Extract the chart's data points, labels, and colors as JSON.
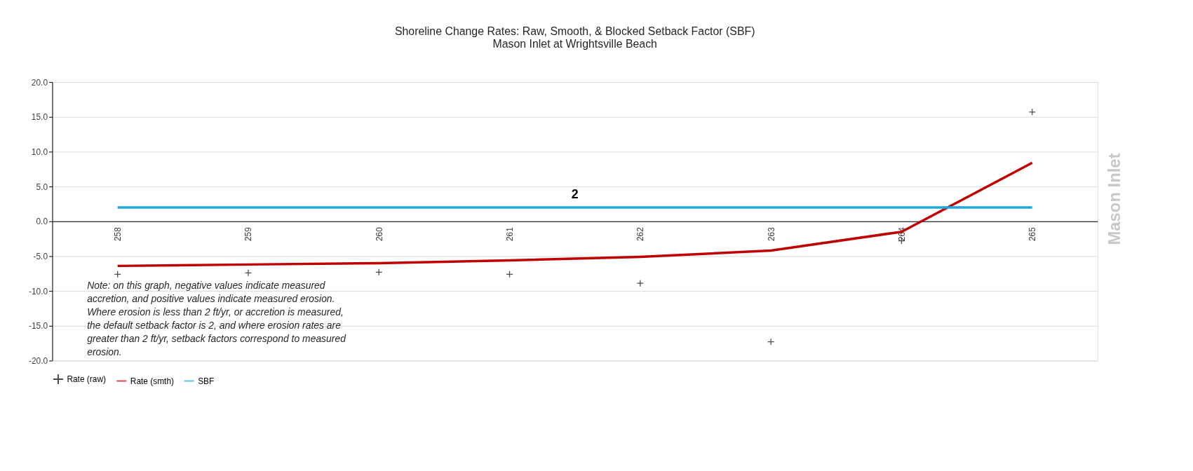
{
  "chart_data": {
    "type": "line",
    "title": "Shoreline Change Rates: Raw, Smooth,  & Blocked Setback Factor (SBF)",
    "subtitle": "Mason Inlet at Wrightsville Beach",
    "categories": [
      "258",
      "259",
      "260",
      "261",
      "262",
      "263",
      "264",
      "265"
    ],
    "series": [
      {
        "name": "Rate (raw)",
        "type": "scatter",
        "marker": "cross",
        "color": "#000000",
        "values": [
          -7.6,
          -7.4,
          -7.3,
          -7.6,
          -8.9,
          -17.3,
          -2.8,
          15.7
        ]
      },
      {
        "name": "Rate (smth)",
        "type": "line",
        "color": "#c00000",
        "values": [
          -6.4,
          -6.2,
          -6.0,
          -5.6,
          -5.1,
          -4.2,
          -1.5,
          8.4
        ]
      },
      {
        "name": "SBF",
        "type": "line",
        "color": "#1fa6d8",
        "values": [
          2,
          2,
          2,
          2,
          2,
          2,
          2,
          2
        ]
      }
    ],
    "ylim": [
      -20,
      20
    ],
    "yticks": [
      {
        "value": -20,
        "label": "-20.0"
      },
      {
        "value": -15,
        "label": "-15.0"
      },
      {
        "value": -10,
        "label": "-10.0"
      },
      {
        "value": -5,
        "label": "-5.0"
      },
      {
        "value": 0,
        "label": "0.0"
      },
      {
        "value": 5,
        "label": "5.0"
      },
      {
        "value": 10,
        "label": "10.0"
      },
      {
        "value": 15,
        "label": "15.0"
      },
      {
        "value": 20,
        "label": "20.0"
      }
    ],
    "grid": "y",
    "legend": "bottom",
    "annotations": [
      {
        "text": "2",
        "y": 2
      },
      "Note: on this graph, negative values indicate measured\naccretion, and positive values indicate measured erosion.\nWhere erosion is less than 2 ft/yr, or accretion is measured,\nthe default setback factor is 2, and where erosion rates are\ngreater than 2 ft/yr, setback factors correspond to measured\nerosion.",
      "Mason Inlet"
    ]
  }
}
